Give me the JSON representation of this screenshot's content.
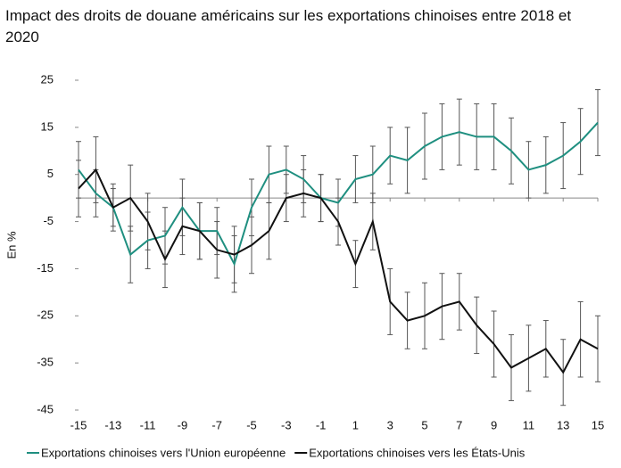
{
  "chart_data": {
    "type": "line",
    "title": "Impact des droits de douane américains sur les exportations chinoises entre 2018 et 2020",
    "ylabel": "En %",
    "x": [
      -15,
      -14,
      -13,
      -12,
      -11,
      -10,
      -9,
      -8,
      -7,
      -6,
      -5,
      -4,
      -3,
      -2,
      -1,
      0,
      1,
      2,
      3,
      4,
      5,
      6,
      7,
      8,
      9,
      10,
      11,
      12,
      13,
      14,
      15
    ],
    "xlim": [
      -15,
      15
    ],
    "xticks": [
      -15,
      -13,
      -11,
      -9,
      -7,
      -5,
      -3,
      -1,
      1,
      3,
      5,
      7,
      9,
      11,
      13,
      15
    ],
    "ylim": [
      -45,
      25
    ],
    "yticks": [
      -45,
      -35,
      -25,
      -15,
      -5,
      5,
      15,
      25
    ],
    "series": [
      {
        "name": "Exportations chinoises vers l'Union européenne",
        "color": "#1f8f80",
        "values": [
          6,
          1,
          -2,
          -12,
          -9,
          -8,
          -2,
          -7,
          -7,
          -14,
          -2,
          5,
          6,
          4,
          0,
          -1,
          4,
          5,
          9,
          8,
          11,
          13,
          14,
          13,
          13,
          10,
          6,
          7,
          9,
          12,
          16
        ],
        "errors": [
          6,
          5,
          4,
          6,
          6,
          6,
          6,
          6,
          5,
          6,
          6,
          6,
          5,
          5,
          5,
          5,
          5,
          6,
          6,
          7,
          7,
          7,
          7,
          7,
          7,
          7,
          6,
          6,
          7,
          7,
          7
        ]
      },
      {
        "name": "Exportations chinoises vers les États-Unis",
        "color": "#111111",
        "values": [
          2,
          6,
          -2,
          0,
          -5,
          -13,
          -6,
          -7,
          -11,
          -12,
          -10,
          -7,
          0,
          1,
          0,
          -5,
          -14,
          -5,
          -22,
          -26,
          -25,
          -23,
          -22,
          -27,
          -31,
          -36,
          -34,
          -32,
          -37,
          -30,
          -32
        ],
        "errors": [
          6,
          7,
          5,
          7,
          6,
          6,
          6,
          6,
          6,
          6,
          6,
          6,
          5,
          5,
          5,
          5,
          5,
          6,
          7,
          6,
          7,
          7,
          6,
          6,
          7,
          7,
          7,
          6,
          7,
          8,
          7
        ]
      }
    ]
  }
}
